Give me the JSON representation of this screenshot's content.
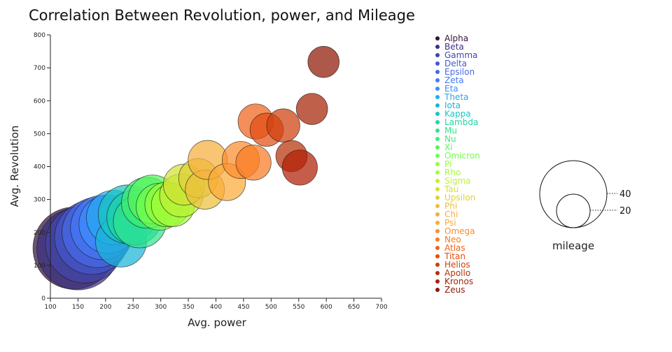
{
  "chart_data": {
    "type": "scatter",
    "title": "Correlation Between Revolution, power, and Mileage",
    "xlabel": "Avg. power",
    "ylabel": "Avg. Revolution",
    "xlim": [
      100,
      700
    ],
    "ylim": [
      0,
      800
    ],
    "xticks": [
      "100",
      "150",
      "200",
      "250",
      "300",
      "350",
      "400",
      "450",
      "500",
      "550",
      "600",
      "650",
      "700"
    ],
    "yticks": [
      "0",
      "100",
      "200",
      "300",
      "400",
      "500",
      "600",
      "700",
      "800"
    ],
    "grid": false,
    "legend_position": "right",
    "series": [
      {
        "name": "Alpha",
        "color": "#30123b",
        "x": 143,
        "y": 152,
        "mileage": 42
      },
      {
        "name": "Beta",
        "color": "#3b2f80",
        "x": 150,
        "y": 150,
        "mileage": 42
      },
      {
        "name": "Gamma",
        "color": "#4145ab",
        "x": 162,
        "y": 165,
        "mileage": 40
      },
      {
        "name": "Delta",
        "color": "#4458cb",
        "x": 175,
        "y": 185,
        "mileage": 38
      },
      {
        "name": "Epsilon",
        "color": "#4669e4",
        "x": 185,
        "y": 200,
        "mileage": 36
      },
      {
        "name": "Zeta",
        "color": "#4478f5",
        "x": 195,
        "y": 215,
        "mileage": 33
      },
      {
        "name": "Eta",
        "color": "#3b8efd",
        "x": 205,
        "y": 225,
        "mileage": 30
      },
      {
        "name": "Theta",
        "color": "#28a8f0",
        "x": 215,
        "y": 245,
        "mileage": 28
      },
      {
        "name": "Iota",
        "color": "#1ab6d8",
        "x": 228,
        "y": 172,
        "mileage": 26
      },
      {
        "name": "Kappa",
        "color": "#18c7c0",
        "x": 240,
        "y": 255,
        "mileage": 30
      },
      {
        "name": "Lambda",
        "color": "#1fd4a8",
        "x": 252,
        "y": 245,
        "mileage": 28
      },
      {
        "name": "Mu",
        "color": "#2ee38e",
        "x": 262,
        "y": 233,
        "mileage": 27
      },
      {
        "name": "Nu",
        "color": "#3fee72",
        "x": 275,
        "y": 290,
        "mileage": 26
      },
      {
        "name": "Xi",
        "color": "#56f55b",
        "x": 285,
        "y": 300,
        "mileage": 25
      },
      {
        "name": "Omicron",
        "color": "#74fc4c",
        "x": 298,
        "y": 278,
        "mileage": 24
      },
      {
        "name": "Pi",
        "color": "#8ffe3d",
        "x": 312,
        "y": 285,
        "mileage": 23
      },
      {
        "name": "Rho",
        "color": "#a4fb38",
        "x": 322,
        "y": 283,
        "mileage": 22
      },
      {
        "name": "Sigma",
        "color": "#bdf133",
        "x": 337,
        "y": 312,
        "mileage": 22
      },
      {
        "name": "Tau",
        "color": "#d0e235",
        "x": 342,
        "y": 345,
        "mileage": 21
      },
      {
        "name": "Upsilon",
        "color": "#e0d038",
        "x": 368,
        "y": 365,
        "mileage": 20
      },
      {
        "name": "Phi",
        "color": "#edbf3b",
        "x": 380,
        "y": 330,
        "mileage": 20
      },
      {
        "name": "Chi",
        "color": "#f6ae3d",
        "x": 385,
        "y": 420,
        "mileage": 20
      },
      {
        "name": "Psi",
        "color": "#fbab38",
        "x": 420,
        "y": 353,
        "mileage": 19
      },
      {
        "name": "Omega",
        "color": "#fc8c2d",
        "x": 445,
        "y": 420,
        "mileage": 19
      },
      {
        "name": "Neo",
        "color": "#fa7a22",
        "x": 468,
        "y": 412,
        "mileage": 18
      },
      {
        "name": "Atlas",
        "color": "#f0621a",
        "x": 472,
        "y": 537,
        "mileage": 18
      },
      {
        "name": "Titan",
        "color": "#e24e12",
        "x": 492,
        "y": 512,
        "mileage": 17
      },
      {
        "name": "Helios",
        "color": "#ce3e0c",
        "x": 522,
        "y": 525,
        "mileage": 17
      },
      {
        "name": "Apollo",
        "color": "#b93107",
        "x": 537,
        "y": 432,
        "mileage": 16
      },
      {
        "name": "Kronos",
        "color": "#a52304",
        "x": 574,
        "y": 575,
        "mileage": 16
      },
      {
        "name": "Zeus",
        "color": "#8f1703",
        "x": 595,
        "y": 718,
        "mileage": 16
      },
      {
        "name": "Zeus",
        "color": "#b01e04",
        "x": 552,
        "y": 397,
        "mileage": 18
      }
    ],
    "size_legend": {
      "title": "mileage",
      "values": [
        40,
        20
      ]
    }
  }
}
